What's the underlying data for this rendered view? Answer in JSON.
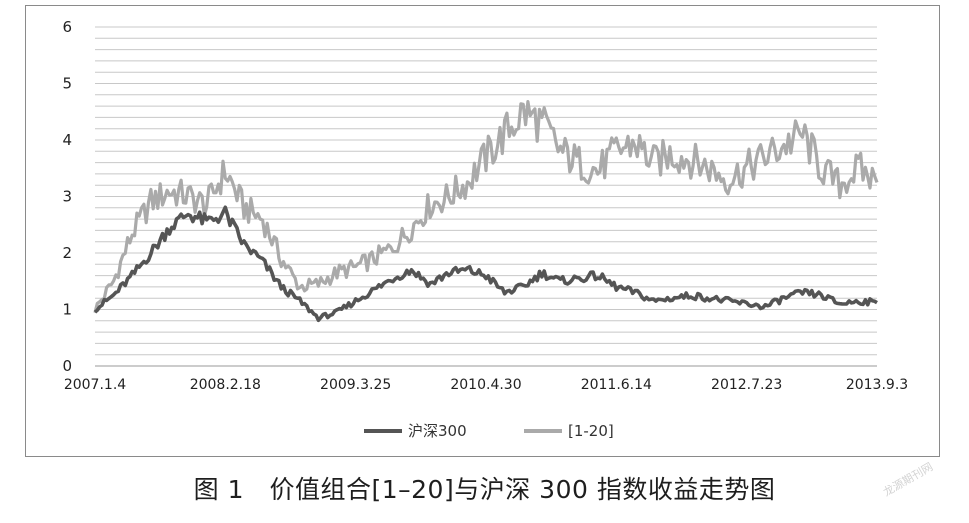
{
  "chart_data": {
    "type": "line",
    "x_ticks": [
      "2007.1.4",
      "2008.2.18",
      "2009.3.25",
      "2010.4.30",
      "2011.6.14",
      "2012.7.23",
      "2013.9.3"
    ],
    "ylim": [
      0,
      6
    ],
    "y_ticks": [
      "0",
      "1",
      "2",
      "3",
      "4",
      "5",
      "6"
    ],
    "grid": "horizontal minor lines every 0.2",
    "legend_position": "bottom-center",
    "x": [
      "2007.1.4",
      "2007.3",
      "2007.5",
      "2007.7",
      "2007.9",
      "2007.11",
      "2008.1",
      "2008.2.18",
      "2008.4",
      "2008.6",
      "2008.8",
      "2008.10",
      "2008.12",
      "2009.2",
      "2009.3.25",
      "2009.5",
      "2009.7",
      "2009.9",
      "2009.11",
      "2010.1",
      "2010.3",
      "2010.4.30",
      "2010.7",
      "2010.9",
      "2010.11",
      "2011.1",
      "2011.3",
      "2011.6.14",
      "2011.8",
      "2011.10",
      "2011.12",
      "2012.2",
      "2012.4",
      "2012.5",
      "2012.7.23",
      "2012.9",
      "2012.11",
      "2013.1",
      "2013.3",
      "2013.5",
      "2013.7",
      "2013.9.3",
      "2013.10"
    ],
    "series": [
      {
        "name": "沪深300",
        "color": "#555555",
        "values": [
          1.0,
          1.25,
          1.6,
          2.0,
          2.45,
          2.7,
          2.55,
          2.7,
          2.15,
          1.85,
          1.4,
          1.15,
          0.85,
          0.95,
          1.15,
          1.35,
          1.55,
          1.7,
          1.45,
          1.65,
          1.7,
          1.6,
          1.3,
          1.4,
          1.65,
          1.5,
          1.55,
          1.6,
          1.4,
          1.3,
          1.15,
          1.2,
          1.25,
          1.2,
          1.15,
          1.1,
          1.05,
          1.2,
          1.3,
          1.25,
          1.1,
          1.15,
          1.12
        ]
      },
      {
        "name": "[1-20]",
        "color": "#aaaaaa",
        "values": [
          1.0,
          1.5,
          2.35,
          2.9,
          3.1,
          3.0,
          2.85,
          3.45,
          2.8,
          2.6,
          1.9,
          1.4,
          1.45,
          1.65,
          1.75,
          1.9,
          2.1,
          2.45,
          2.85,
          3.0,
          3.25,
          3.7,
          4.1,
          4.5,
          4.3,
          3.8,
          3.6,
          3.45,
          3.8,
          3.95,
          3.6,
          3.75,
          3.65,
          3.5,
          3.3,
          3.5,
          3.7,
          3.9,
          4.1,
          3.5,
          3.2,
          3.5,
          3.25
        ]
      }
    ]
  },
  "caption": "图 1　价值组合[1–20]与沪深 300 指数收益走势图",
  "watermark": "龙源期刊网"
}
